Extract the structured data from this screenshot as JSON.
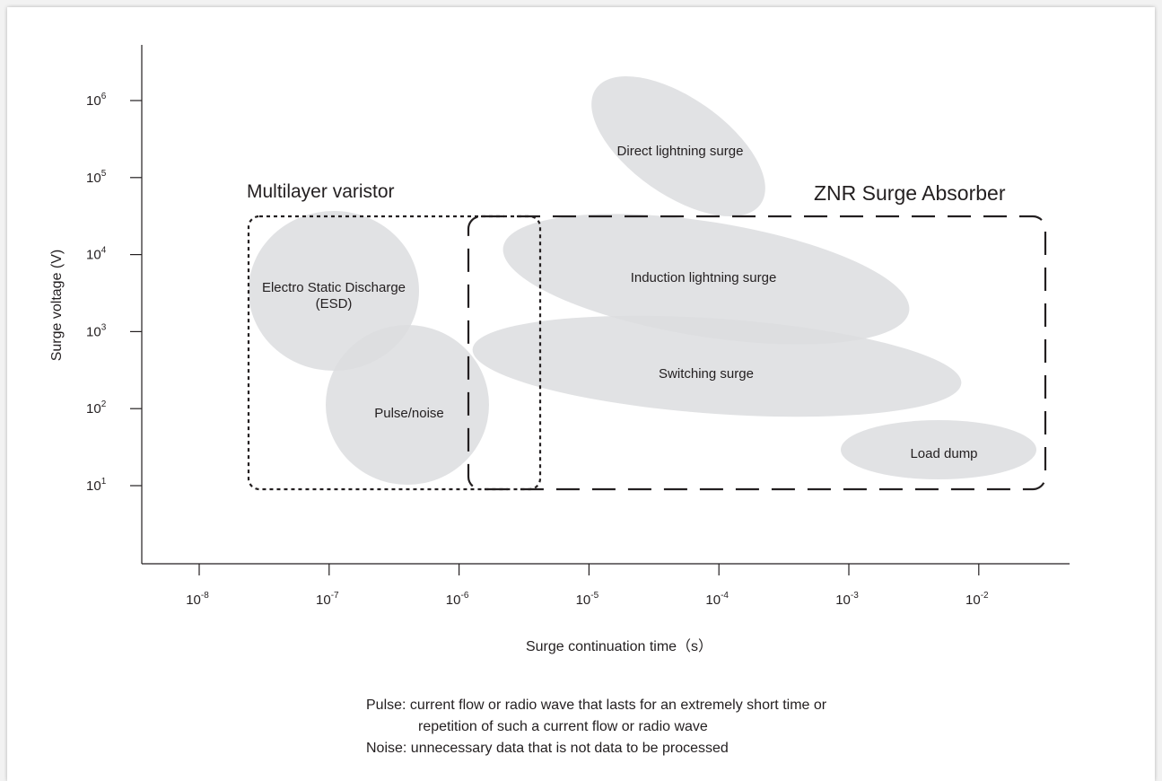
{
  "y_ticks": [
    {
      "base": "10",
      "exp": "6"
    },
    {
      "base": "10",
      "exp": "5"
    },
    {
      "base": "10",
      "exp": "4"
    },
    {
      "base": "10",
      "exp": "3"
    },
    {
      "base": "10",
      "exp": "2"
    },
    {
      "base": "10",
      "exp": "1"
    }
  ],
  "x_ticks": [
    {
      "base": "10",
      "exp": "-8"
    },
    {
      "base": "10",
      "exp": "-7"
    },
    {
      "base": "10",
      "exp": "-6"
    },
    {
      "base": "10",
      "exp": "-5"
    },
    {
      "base": "10",
      "exp": "-4"
    },
    {
      "base": "10",
      "exp": "-3"
    },
    {
      "base": "10",
      "exp": "-2"
    }
  ],
  "y_label": "Surge voltage (V)",
  "x_label": "Surge continuation time（s）",
  "groups": [
    "Multilayer varistor",
    "ZNR Surge Absorber"
  ],
  "regions": [
    "Direct lightning surge",
    "Induction lightning surge",
    "Switching surge",
    "Load dump",
    "Electro Static Discharge",
    "(ESD)",
    "Pulse/noise"
  ],
  "notes": [
    "Pulse: current flow or radio wave that lasts for an extremely short time or",
    "repetition of such a current flow or radio wave",
    "Noise: unnecessary data that is not data to be processed"
  ]
}
